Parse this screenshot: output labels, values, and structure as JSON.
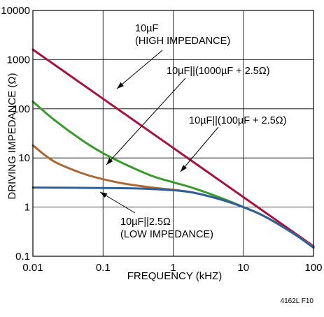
{
  "chart_data": {
    "type": "line",
    "x_scale": "log",
    "y_scale": "log",
    "xlim": [
      0.01,
      100
    ],
    "ylim": [
      0.1,
      10000
    ],
    "x_ticks": [
      "0.01",
      "0.1",
      "1",
      "10",
      "100"
    ],
    "y_ticks": [
      "0.1",
      "1",
      "10",
      "100",
      "1000",
      "10000"
    ],
    "xlabel": "FREQUENCY (kHZ)",
    "ylabel": "DRIVING IMPEDANCE (Ω)",
    "grid": true,
    "series": [
      {
        "color": "#a8123e",
        "x": [
          0.01,
          0.1,
          1,
          10,
          100
        ],
        "y": [
          1600,
          160,
          16,
          1.6,
          0.16
        ]
      },
      {
        "color": "#3a9a2e",
        "x": [
          0.01,
          0.02,
          0.05,
          0.1,
          0.2,
          0.5,
          1,
          2,
          5,
          10,
          20,
          50,
          100
        ],
        "y": [
          140,
          60,
          23,
          12.5,
          7.6,
          4.3,
          3.2,
          2.4,
          1.5,
          1.0,
          0.65,
          0.3,
          0.15
        ]
      },
      {
        "color": "#a86a34",
        "x": [
          0.01,
          0.02,
          0.05,
          0.1,
          0.2,
          0.5,
          1,
          2,
          5,
          10,
          20,
          50,
          100
        ],
        "y": [
          18,
          8.5,
          4.9,
          3.7,
          3.0,
          2.5,
          2.25,
          1.95,
          1.4,
          1.0,
          0.65,
          0.3,
          0.155
        ]
      },
      {
        "color": "#2f5f9a",
        "x": [
          0.01,
          0.1,
          0.3,
          1,
          2,
          5,
          10,
          20,
          50,
          100
        ],
        "y": [
          2.5,
          2.45,
          2.4,
          2.2,
          1.95,
          1.4,
          1.0,
          0.65,
          0.3,
          0.15
        ]
      }
    ],
    "annotations": [
      {
        "lines": [
          "10µF",
          "(HIGH IMPEDANCE)"
        ],
        "series": 0
      },
      {
        "lines": [
          "10µF||(1000µF + 2.5Ω)"
        ],
        "series": 2
      },
      {
        "lines": [
          "10µF||(100µF + 2.5Ω)"
        ],
        "series": 1
      },
      {
        "lines": [
          "10µF||2.5Ω",
          "(LOW IMPEDANCE)"
        ],
        "series": 3
      }
    ]
  },
  "figure_id": "4162L F10"
}
